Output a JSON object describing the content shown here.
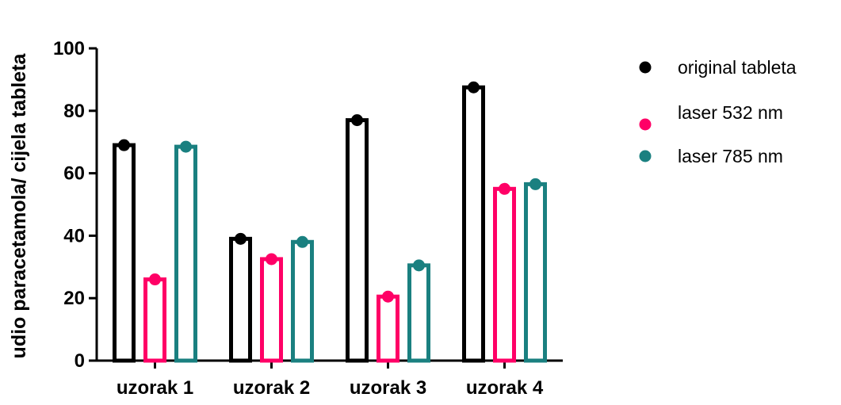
{
  "chart_data": {
    "type": "bar",
    "title": "",
    "xlabel": "",
    "ylabel": "udio paracetamola/ cijela tableta",
    "categories": [
      "uzorak 1",
      "uzorak 2",
      "uzorak 3",
      "uzorak 4"
    ],
    "series": [
      {
        "name": "original tableta",
        "values": [
          69,
          39,
          77,
          87.5
        ],
        "color": "#000000"
      },
      {
        "name": "laser 532 nm",
        "values": [
          26,
          32.5,
          20.5,
          55
        ],
        "color": "#ff0066"
      },
      {
        "name": "laser 785 nm",
        "values": [
          68.5,
          38,
          30.5,
          56.5
        ],
        "color": "#1a8080"
      }
    ],
    "ylim": [
      0,
      100
    ],
    "yticks": [
      0,
      20,
      40,
      60,
      80,
      100
    ],
    "grid": false,
    "legend_position": "top-right",
    "bar_style": "hollow bars with point marker at top"
  }
}
